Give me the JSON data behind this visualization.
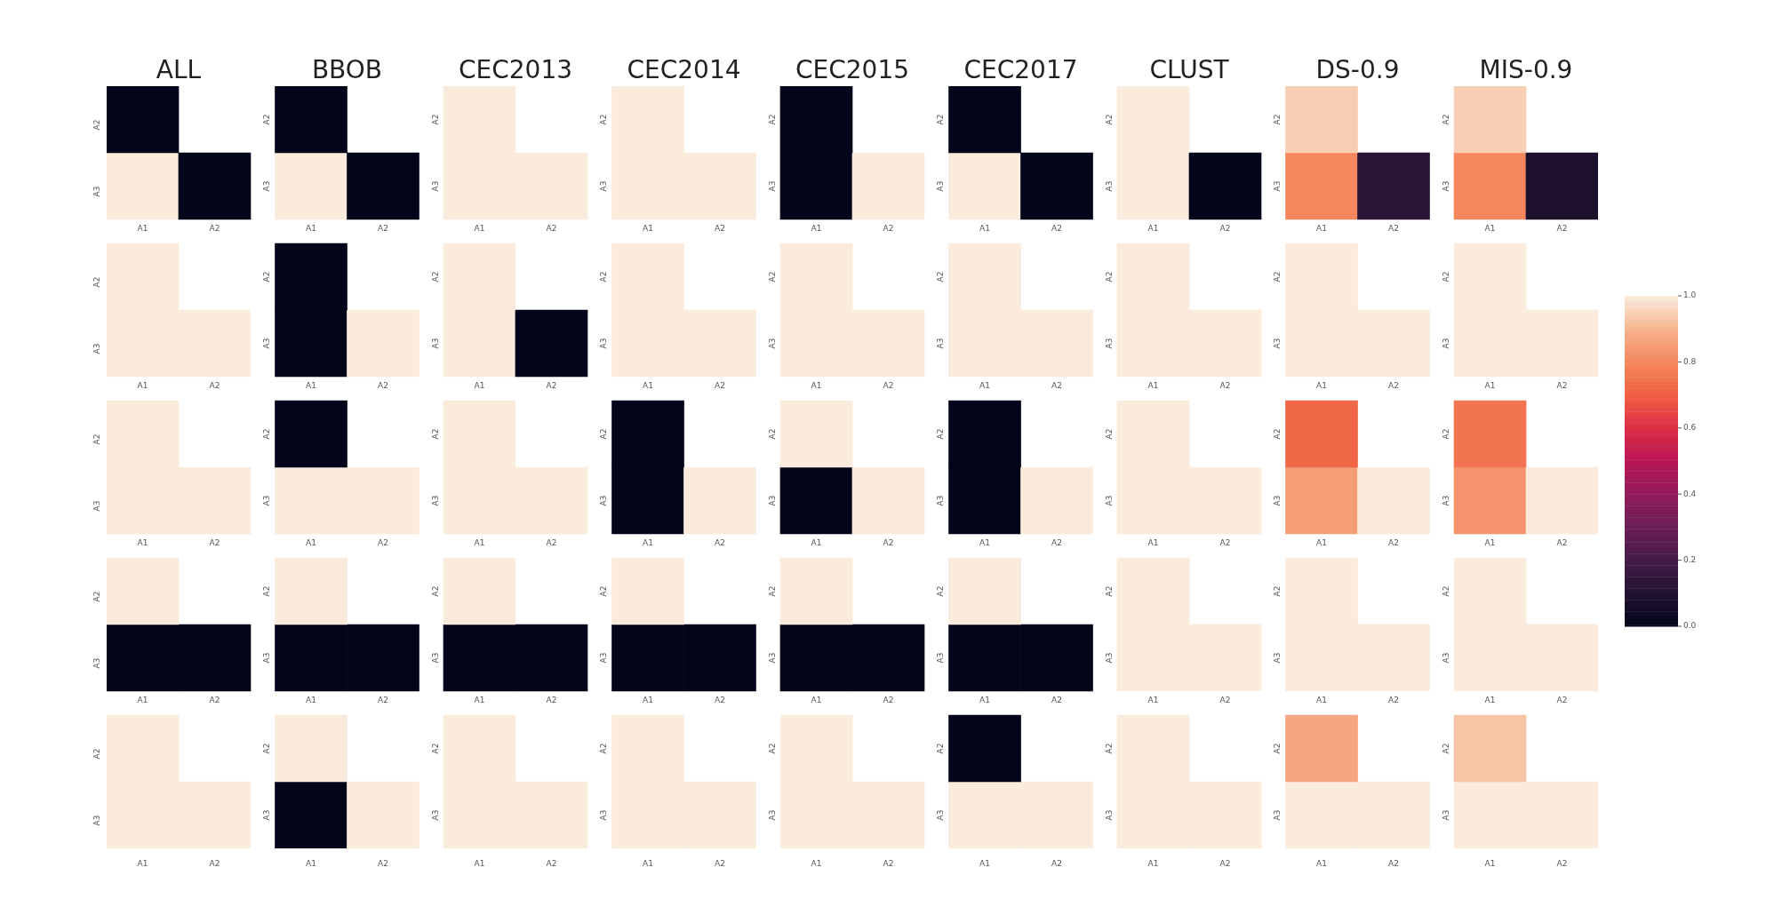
{
  "chart_data": {
    "type": "heatmap",
    "annotations": [
      "ALL",
      "BBOB",
      "CEC2013",
      "CEC2014",
      "CEC2015",
      "CEC2017",
      "CLUST",
      "DS-0.9",
      "MIS-0.9"
    ],
    "categories": [
      "A1",
      "A2",
      "A1",
      "A2",
      "A1",
      "A2",
      "A1",
      "A2",
      "A1",
      "A2",
      "A1",
      "A2",
      "A1",
      "A2",
      "A1",
      "A2",
      "A1",
      "A2"
    ],
    "y_categories": [
      "A2",
      "A3",
      "A2",
      "A3",
      "A2",
      "A3",
      "A2",
      "A3",
      "A2",
      "A3"
    ],
    "cells": [
      [
        0,
        null,
        0,
        null,
        1,
        null,
        1,
        null,
        0,
        null,
        0,
        null,
        1,
        null,
        0.95,
        null,
        0.95,
        null
      ],
      [
        1,
        0,
        1,
        0,
        1,
        1,
        1,
        1,
        0,
        1,
        1,
        0,
        1,
        0,
        0.8,
        0.12,
        0.8,
        0.08
      ],
      [
        1,
        null,
        0,
        null,
        1,
        null,
        1,
        null,
        1,
        null,
        1,
        null,
        1,
        null,
        1,
        null,
        1,
        null
      ],
      [
        1,
        1,
        0,
        1,
        1,
        0,
        1,
        1,
        1,
        1,
        1,
        1,
        1,
        1,
        1,
        1,
        1,
        1
      ],
      [
        1,
        null,
        0,
        null,
        1,
        null,
        0,
        null,
        1,
        null,
        0,
        null,
        1,
        null,
        0.72,
        null,
        0.75,
        null
      ],
      [
        1,
        1,
        1,
        1,
        1,
        1,
        0,
        1,
        0,
        1,
        0,
        1,
        1,
        1,
        0.85,
        1,
        0.83,
        1
      ],
      [
        1,
        null,
        1,
        null,
        1,
        null,
        1,
        null,
        1,
        null,
        1,
        null,
        1,
        null,
        1,
        null,
        1,
        null
      ],
      [
        0,
        0,
        0,
        0,
        0,
        0,
        0,
        0,
        0,
        0,
        0,
        0,
        1,
        1,
        1,
        1,
        1,
        1
      ],
      [
        1,
        null,
        1,
        null,
        1,
        null,
        1,
        null,
        1,
        null,
        0,
        null,
        1,
        null,
        0.87,
        null,
        0.93,
        null
      ],
      [
        1,
        1,
        0,
        1,
        1,
        1,
        1,
        1,
        1,
        1,
        1,
        1,
        1,
        1,
        1,
        1,
        1,
        1
      ]
    ],
    "clim": [
      0,
      1
    ],
    "cticks": [
      {
        "value": 0,
        "label": "0.0"
      },
      {
        "value": 0.2,
        "label": "0.2"
      },
      {
        "value": 0.4,
        "label": "0.4"
      },
      {
        "value": 0.6,
        "label": "0.6"
      },
      {
        "value": 0.8,
        "label": "0.8"
      },
      {
        "value": 1,
        "label": "1.0"
      }
    ]
  }
}
